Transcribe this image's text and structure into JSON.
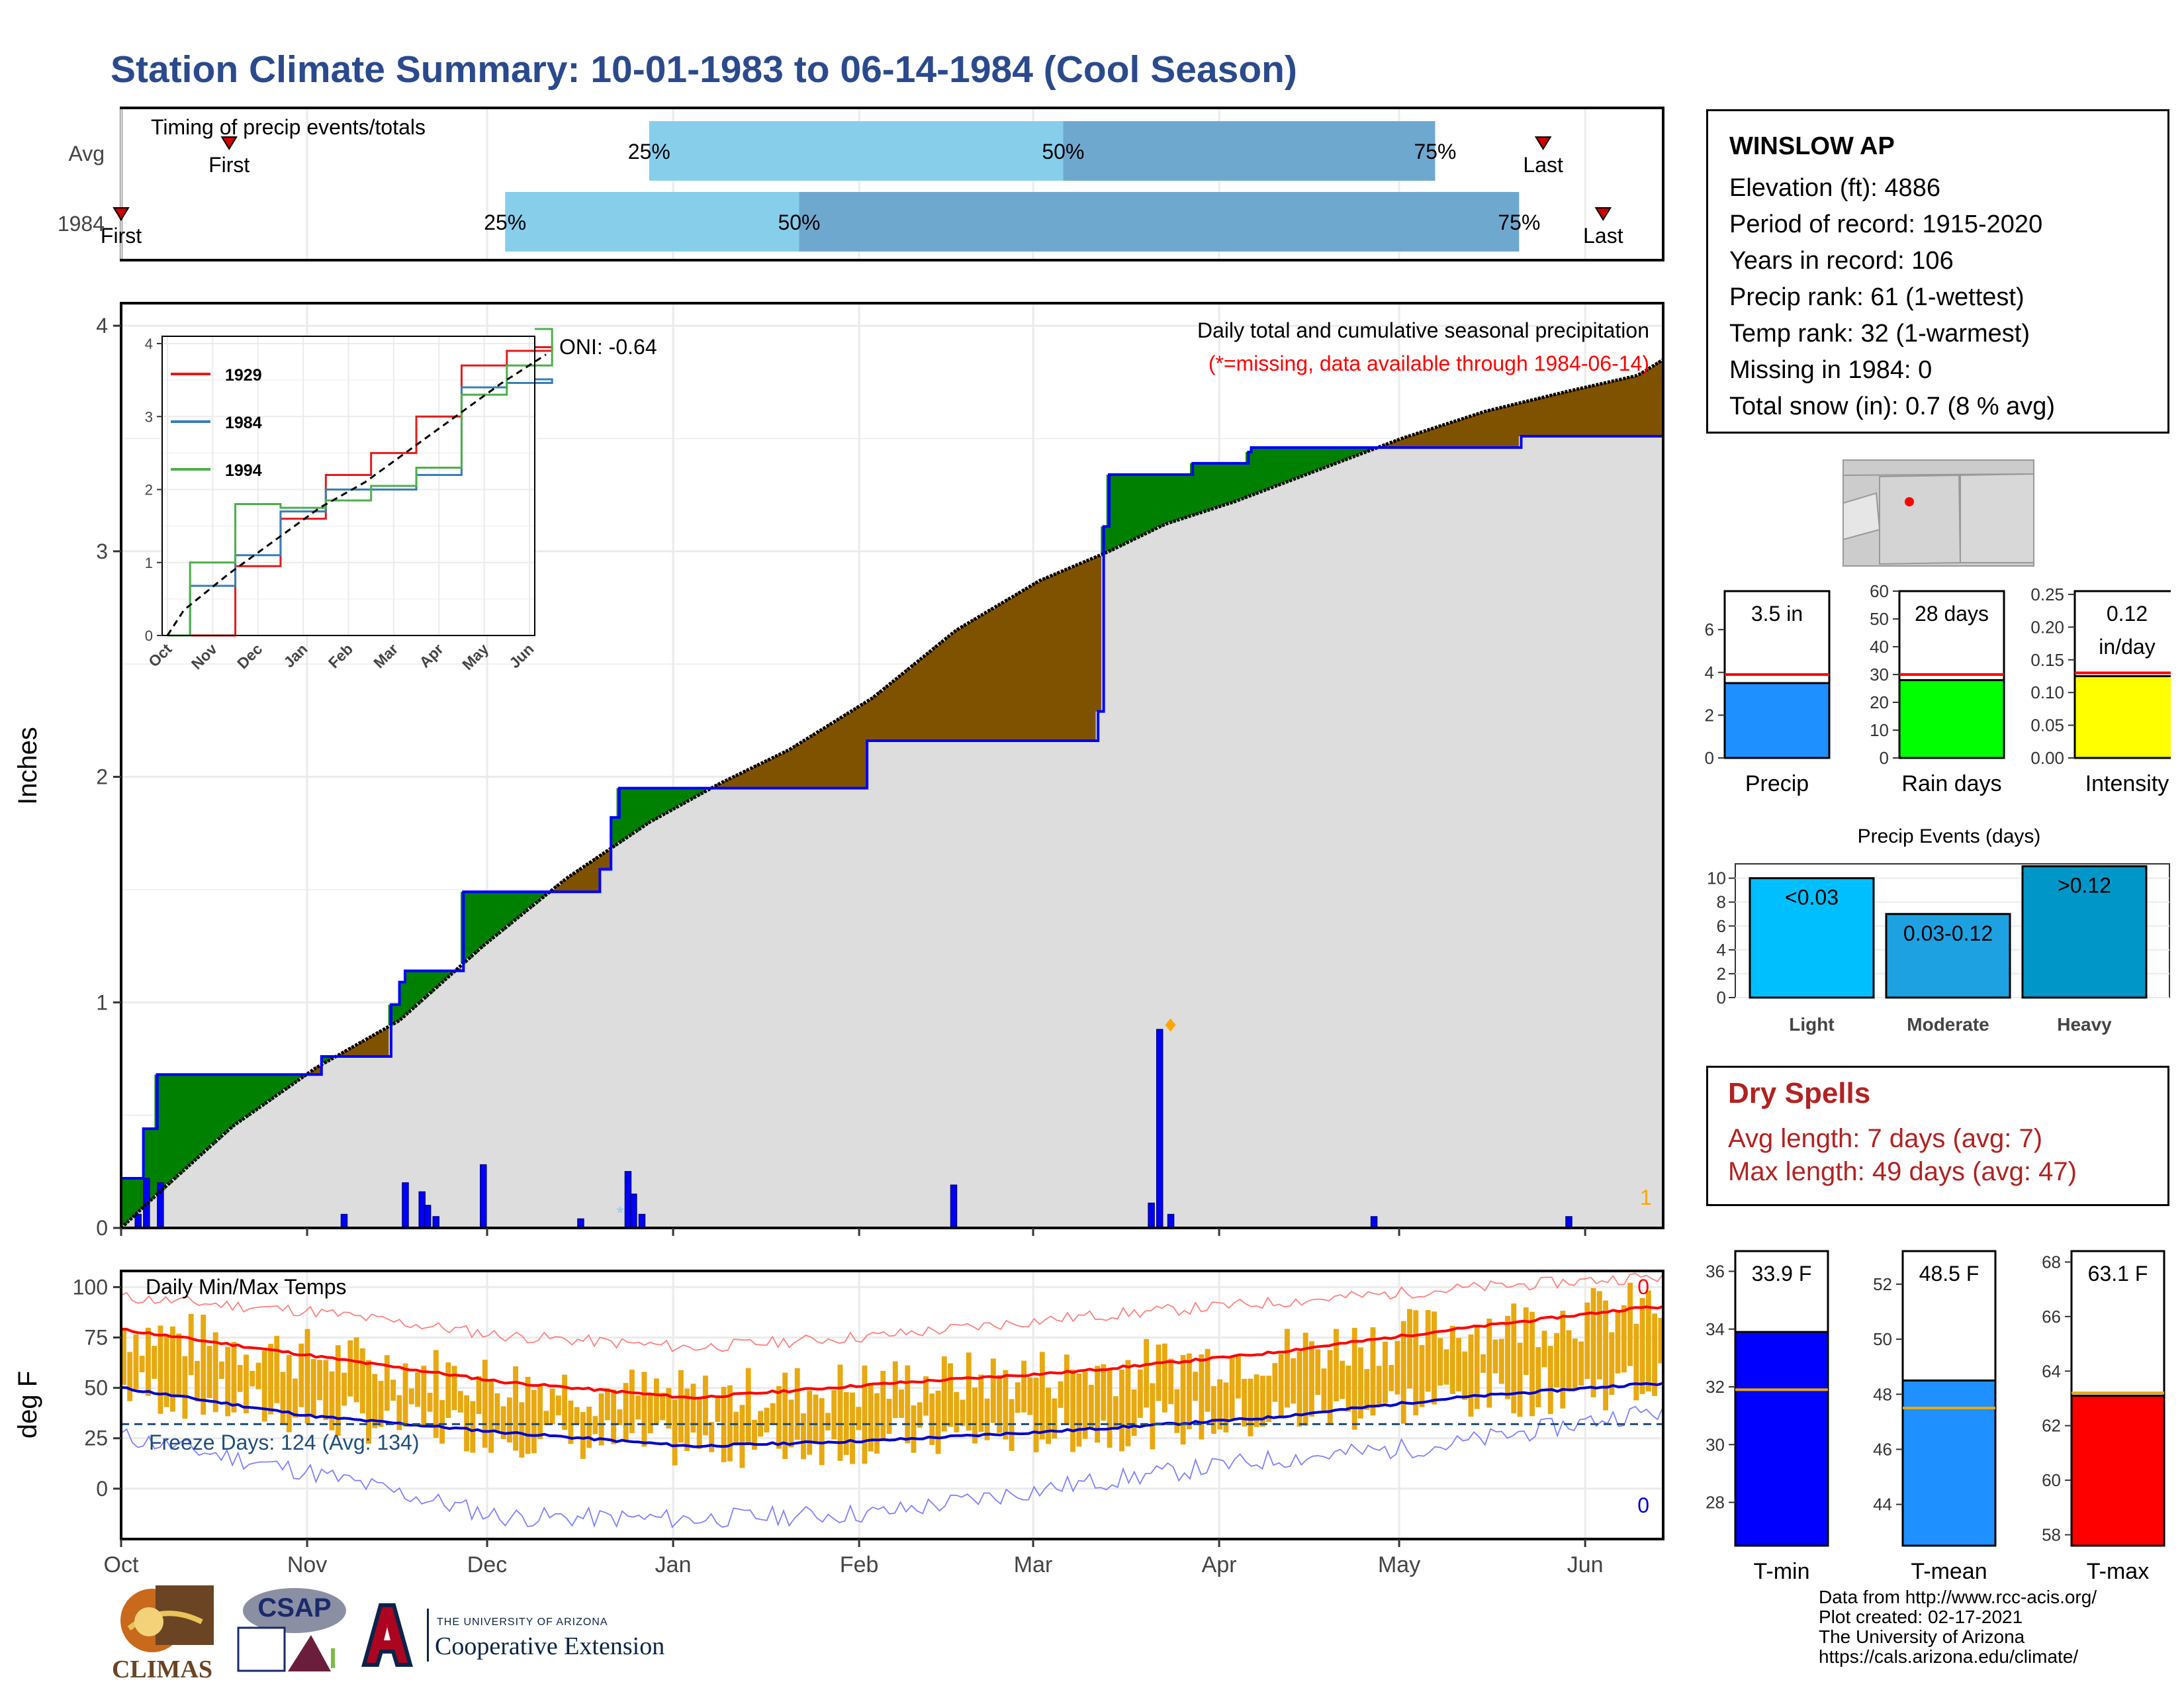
{
  "title": "Station Climate Summary: 10-01-1983 to 06-14-1984 (Cool Season)",
  "colors": {
    "title": "#2b4a8e",
    "wetter": "#008000",
    "drier": "#7f5200",
    "cumulative_obs": "#0000ff",
    "cumulative_avg": "#000000",
    "normal_fill": "#dddddd",
    "bar_light": "#87ceeb",
    "bar_dark": "#6fa8cf",
    "dry_spells": "#b22222",
    "temp_bars": "#e8a80f",
    "tmax_line": "#ff0000",
    "tmin_line": "#0000cd",
    "freeze_line": "#1f4e79"
  },
  "timing": {
    "title": "Timing of precip events/totals",
    "rows": [
      {
        "label": "Avg",
        "first_label": "First",
        "last_label": "Last",
        "first_day": 18,
        "last_day": 237,
        "p25_day": 88,
        "p50_day": 157,
        "p75_day": 219,
        "p25_label": "25%",
        "p50_label": "50%",
        "p75_label": "75%"
      },
      {
        "label": "1984",
        "first_label": "First",
        "last_label": "Last",
        "first_day": 0,
        "last_day": 247,
        "p25_day": 64,
        "p50_day": 113,
        "p75_day": 233,
        "p25_label": "25%",
        "p50_label": "50%",
        "p75_label": "75%"
      }
    ]
  },
  "main_panel": {
    "ylabel": "Inches",
    "title": "Daily total and cumulative seasonal precipitation",
    "note": "(*=missing, data available through 1984-06-14)",
    "oni": "ONI: -0.64",
    "count_label": "1",
    "y_ticks": [
      "0",
      "1",
      "2",
      "3",
      "4"
    ]
  },
  "inset": {
    "series_1929": "1929",
    "series_1984": "1984",
    "series_1994": "1994",
    "months": [
      "Oct",
      "Nov",
      "Dec",
      "Jan",
      "Feb",
      "Mar",
      "Apr",
      "May",
      "Jun"
    ],
    "y_ticks": [
      "0",
      "1",
      "2",
      "3",
      "4"
    ]
  },
  "temp_panel": {
    "title": "Daily Min/Max Temps",
    "ylabel": "deg F",
    "freeze": "Freeze Days: 124 (Avg: 134)",
    "top_count": "0",
    "bottom_count": "0",
    "y_ticks": [
      "0",
      "25",
      "50",
      "75",
      "100"
    ],
    "months": [
      "Oct",
      "Nov",
      "Dec",
      "Jan",
      "Feb",
      "Mar",
      "Apr",
      "May",
      "Jun"
    ]
  },
  "station": {
    "name": "WINSLOW AP",
    "elevation": "Elevation (ft): 4886",
    "period": "Period of record: 1915-2020",
    "years": "Years in record: 106",
    "precip_rank": "Precip rank: 61 (1-wettest)",
    "temp_rank": "Temp rank: 32 (1-warmest)",
    "missing": "Missing in 1984: 0",
    "snow": "Total snow (in): 0.7 (8 % avg)"
  },
  "summary_bars": {
    "precip": {
      "label": "Precip",
      "value_label": "3.5 in",
      "value": 3.5,
      "avg": 3.9,
      "ticks": [
        "0",
        "2",
        "4",
        "6"
      ]
    },
    "rain_days": {
      "label": "Rain days",
      "value_label": "28 days",
      "value": 28,
      "avg": 30,
      "ticks": [
        "0",
        "10",
        "20",
        "30",
        "40",
        "50",
        "60"
      ]
    },
    "intensity": {
      "label": "Intensity",
      "value_label": "0.12",
      "value_label2": "in/day",
      "value": 0.125,
      "avg": 0.13,
      "ticks": [
        "0.00",
        "0.05",
        "0.10",
        "0.15",
        "0.20",
        "0.25"
      ]
    }
  },
  "events": {
    "title": "Precip Events (days)",
    "categories": [
      "Light",
      "Moderate",
      "Heavy"
    ],
    "bar_labels": [
      "<0.03",
      "0.03-0.12",
      ">0.12"
    ],
    "values": [
      10,
      7,
      11
    ],
    "ticks": [
      "0",
      "2",
      "4",
      "6",
      "8",
      "10"
    ]
  },
  "dry_spells": {
    "title": "Dry Spells",
    "avg": "Avg length: 7 days (avg: 7)",
    "max": "Max length: 49 days (avg: 47)"
  },
  "temp_bars": {
    "tmin": {
      "label": "T-min",
      "value_label": "33.9 F",
      "value": 33.9,
      "avg": 31.9,
      "ticks": [
        "28",
        "30",
        "32",
        "34",
        "36"
      ]
    },
    "tmean": {
      "label": "T-mean",
      "value_label": "48.5 F",
      "value": 48.5,
      "avg": 47.5,
      "ticks": [
        "44",
        "46",
        "48",
        "50",
        "52"
      ]
    },
    "tmax": {
      "label": "T-max",
      "value_label": "63.1 F",
      "value": 63.1,
      "avg": 63.2,
      "ticks": [
        "58",
        "60",
        "62",
        "64",
        "66",
        "68"
      ]
    }
  },
  "footer": {
    "line1": "Data from http://www.rcc-acis.org/",
    "line2": "Plot created: 02-17-2021",
    "line3": "The University of Arizona",
    "line4": "https://cals.arizona.edu/climate/",
    "climas": "CLIMAS",
    "csap": "CSAP",
    "uofa_small": "THE UNIVERSITY OF ARIZONA",
    "coop": "Cooperative Extension"
  },
  "chart_data": [
    {
      "type": "area",
      "title": "Daily total and cumulative seasonal precipitation",
      "ylabel": "Inches",
      "ylim": [
        0,
        4.1
      ],
      "x_axis": "days since Oct 1",
      "cumulative_1984": [
        [
          0,
          0.22
        ],
        [
          8,
          0.22
        ],
        [
          8,
          0.44
        ],
        [
          13,
          0.44
        ],
        [
          13,
          0.68
        ],
        [
          62,
          0.68
        ],
        [
          62,
          0.68
        ],
        [
          72,
          0.68
        ],
        [
          72,
          0.76
        ],
        [
          97,
          0.76
        ],
        [
          97,
          0.99
        ],
        [
          100,
          0.99
        ],
        [
          100,
          1.09
        ],
        [
          102,
          1.09
        ],
        [
          102,
          1.14
        ],
        [
          123,
          1.14
        ],
        [
          123,
          1.49
        ],
        [
          148,
          1.49
        ],
        [
          148,
          1.49
        ],
        [
          172,
          1.49
        ],
        [
          172,
          1.59
        ],
        [
          176,
          1.59
        ],
        [
          176,
          1.82
        ],
        [
          179,
          1.82
        ],
        [
          179,
          1.95
        ],
        [
          225,
          1.95
        ],
        [
          225,
          1.95
        ],
        [
          268,
          1.95
        ],
        [
          268,
          2.16
        ],
        [
          335,
          2.16
        ],
        [
          335,
          2.16
        ],
        [
          351,
          2.16
        ],
        [
          351,
          2.29
        ],
        [
          353,
          2.29
        ],
        [
          353,
          3.11
        ],
        [
          355,
          3.11
        ],
        [
          355,
          3.34
        ],
        [
          385,
          3.34
        ],
        [
          385,
          3.39
        ],
        [
          405,
          3.39
        ],
        [
          405,
          3.44
        ],
        [
          406,
          3.44
        ],
        [
          406,
          3.46
        ],
        [
          440,
          3.46
        ],
        [
          440,
          3.46
        ],
        [
          503,
          3.46
        ],
        [
          503,
          3.51
        ],
        [
          554,
          3.51
        ],
        [
          554,
          3.51
        ]
      ],
      "cumulative_avg": [
        [
          0,
          0
        ],
        [
          13,
          0.15
        ],
        [
          40,
          0.45
        ],
        [
          70,
          0.71
        ],
        [
          100,
          0.92
        ],
        [
          130,
          1.25
        ],
        [
          160,
          1.55
        ],
        [
          190,
          1.8
        ],
        [
          215,
          1.97
        ],
        [
          240,
          2.12
        ],
        [
          270,
          2.35
        ],
        [
          300,
          2.65
        ],
        [
          330,
          2.87
        ],
        [
          355,
          3.0
        ],
        [
          375,
          3.12
        ],
        [
          400,
          3.22
        ],
        [
          430,
          3.36
        ],
        [
          460,
          3.5
        ],
        [
          490,
          3.62
        ],
        [
          520,
          3.71
        ],
        [
          545,
          3.78
        ],
        [
          554,
          3.85
        ]
      ],
      "daily_bars": [
        [
          6,
          0.06
        ],
        [
          9,
          0.22
        ],
        [
          14,
          0.2
        ],
        [
          80,
          0.06
        ],
        [
          102,
          0.2
        ],
        [
          108,
          0.16
        ],
        [
          110,
          0.1
        ],
        [
          113,
          0.05
        ],
        [
          130,
          0.28
        ],
        [
          165,
          0.04
        ],
        [
          182,
          0.25
        ],
        [
          184,
          0.15
        ],
        [
          187,
          0.06
        ],
        [
          299,
          0.19
        ],
        [
          370,
          0.11
        ],
        [
          373,
          0.88
        ],
        [
          377,
          0.06
        ],
        [
          450,
          0.05
        ],
        [
          520,
          0.05
        ]
      ],
      "max_day_marker": [
        377,
        0.9
      ]
    },
    {
      "type": "line",
      "title": "Daily Min/Max Temps",
      "ylabel": "deg F",
      "ylim": [
        -25,
        108
      ],
      "x": [
        "Oct",
        "Nov",
        "Dec",
        "Jan",
        "Feb",
        "Mar",
        "Apr",
        "May",
        "Jun"
      ],
      "series": [
        {
          "name": "avg max",
          "values": [
            79,
            66,
            53,
            45,
            52,
            58,
            67,
            79,
            90
          ]
        },
        {
          "name": "avg min",
          "values": [
            50,
            36,
            28,
            21,
            24,
            29,
            35,
            45,
            52
          ]
        },
        {
          "name": "record max",
          "values": [
            95,
            88,
            76,
            70,
            76,
            85,
            92,
            99,
            105
          ]
        },
        {
          "name": "record min",
          "values": [
            26,
            8,
            -14,
            -15,
            -12,
            2,
            14,
            22,
            38
          ]
        }
      ],
      "freeze_line": 32
    },
    {
      "type": "line",
      "title": "",
      "x": [
        "Oct",
        "Nov",
        "Dec",
        "Jan",
        "Feb",
        "Mar",
        "Apr",
        "May",
        "Jun"
      ],
      "series": [
        {
          "name": "1929",
          "values": [
            0,
            0.95,
            1.6,
            2.2,
            2.5,
            3.0,
            3.7,
            3.9,
            3.95
          ]
        },
        {
          "name": "1984",
          "values": [
            0.68,
            1.1,
            1.7,
            2.0,
            2.0,
            2.2,
            3.4,
            3.46,
            3.51
          ]
        },
        {
          "name": "1994",
          "values": [
            1.0,
            1.8,
            1.75,
            1.85,
            2.05,
            2.3,
            3.3,
            3.7,
            4.2
          ]
        }
      ],
      "ylim": [
        0,
        4.1
      ]
    },
    {
      "type": "bar",
      "title": "Precip Events (days)",
      "categories": [
        "Light",
        "Moderate",
        "Heavy"
      ],
      "values": [
        10,
        7,
        11
      ]
    }
  ]
}
